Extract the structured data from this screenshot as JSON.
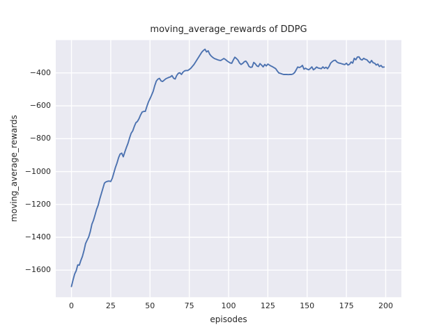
{
  "figure": {
    "title": "moving_average_rewards of DDPG",
    "xlabel": "episodes",
    "ylabel": "moving_average_rewards"
  },
  "chart_data": {
    "type": "line",
    "title": "moving_average_rewards of DDPG",
    "xlabel": "episodes",
    "ylabel": "moving_average_rewards",
    "grid": true,
    "legend_position": "none",
    "plot_bg_color": "#EAEAF2",
    "grid_color": "#FFFFFF",
    "text_color": "#262626",
    "line_color": "#4C72B0",
    "xlim": [
      -10,
      210
    ],
    "ylim": [
      -1765,
      -200
    ],
    "x_ticks": [
      0,
      25,
      50,
      75,
      100,
      125,
      150,
      175,
      200
    ],
    "x_tick_labels": [
      "0",
      "25",
      "50",
      "75",
      "100",
      "125",
      "150",
      "175",
      "200"
    ],
    "y_ticks": [
      -400,
      -600,
      -800,
      -1000,
      -1200,
      -1400,
      -1600
    ],
    "y_tick_labels": [
      "−400",
      "−600",
      "−800",
      "−1000",
      "−1200",
      "−1400",
      "−1600"
    ],
    "series": [
      {
        "name": "moving_average_rewards",
        "color": "#4C72B0",
        "x_start": 0,
        "x_step": 1,
        "y": [
          -1700,
          -1660,
          -1624,
          -1604,
          -1568,
          -1570,
          -1540,
          -1516,
          -1480,
          -1438,
          -1417,
          -1398,
          -1365,
          -1320,
          -1297,
          -1264,
          -1230,
          -1205,
          -1168,
          -1135,
          -1103,
          -1070,
          -1063,
          -1059,
          -1058,
          -1061,
          -1040,
          -1008,
          -974,
          -948,
          -915,
          -893,
          -888,
          -910,
          -880,
          -852,
          -828,
          -795,
          -767,
          -752,
          -726,
          -703,
          -695,
          -678,
          -656,
          -638,
          -634,
          -634,
          -603,
          -577,
          -556,
          -535,
          -512,
          -478,
          -450,
          -438,
          -433,
          -448,
          -452,
          -444,
          -436,
          -431,
          -427,
          -424,
          -416,
          -432,
          -437,
          -415,
          -402,
          -399,
          -409,
          -395,
          -387,
          -385,
          -385,
          -379,
          -371,
          -360,
          -348,
          -333,
          -318,
          -303,
          -288,
          -273,
          -263,
          -256,
          -272,
          -265,
          -286,
          -298,
          -306,
          -312,
          -316,
          -320,
          -323,
          -324,
          -318,
          -312,
          -318,
          -326,
          -333,
          -339,
          -341,
          -321,
          -304,
          -312,
          -322,
          -340,
          -348,
          -342,
          -332,
          -328,
          -341,
          -360,
          -366,
          -364,
          -336,
          -344,
          -357,
          -361,
          -343,
          -352,
          -363,
          -348,
          -357,
          -346,
          -352,
          -358,
          -362,
          -368,
          -374,
          -388,
          -400,
          -403,
          -406,
          -409,
          -409,
          -409,
          -410,
          -409,
          -409,
          -406,
          -398,
          -382,
          -364,
          -367,
          -363,
          -354,
          -377,
          -371,
          -377,
          -381,
          -373,
          -363,
          -381,
          -374,
          -364,
          -370,
          -372,
          -374,
          -363,
          -372,
          -365,
          -374,
          -360,
          -340,
          -331,
          -324,
          -323,
          -334,
          -339,
          -341,
          -344,
          -347,
          -349,
          -341,
          -352,
          -347,
          -333,
          -340,
          -311,
          -320,
          -303,
          -302,
          -317,
          -321,
          -311,
          -317,
          -320,
          -331,
          -339,
          -324,
          -338,
          -341,
          -352,
          -346,
          -361,
          -354,
          -365,
          -364
        ]
      }
    ]
  }
}
